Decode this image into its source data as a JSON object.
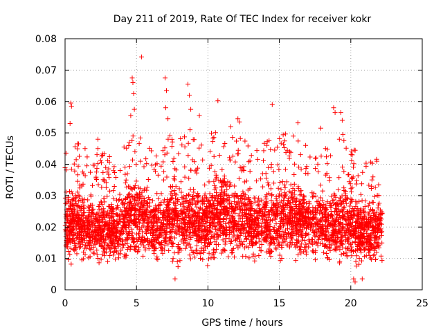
{
  "chart_data": {
    "type": "scatter",
    "title": "Day 211 of 2019, Rate Of TEC Index for receiver kokr",
    "xlabel": "GPS time / hours",
    "ylabel": "ROTI / TECUs",
    "xlim": [
      0,
      25
    ],
    "ylim": [
      0,
      0.08
    ],
    "grid": true,
    "x_ticks": [
      0,
      5,
      10,
      15,
      20,
      25
    ],
    "x_tick_labels": [
      "0",
      "5",
      "10",
      "15",
      "20",
      "25"
    ],
    "y_ticks": [
      0,
      0.01,
      0.02,
      0.03,
      0.04,
      0.05,
      0.06,
      0.07,
      0.08
    ],
    "y_tick_labels": [
      "0",
      "0.01",
      "0.02",
      "0.03",
      "0.04",
      "0.05",
      "0.06",
      "0.07",
      "0.08"
    ],
    "marker": "plus",
    "marker_color": "#ff0000",
    "data_coverage_hours": [
      0,
      22.2
    ],
    "band_envelope": {
      "x": [
        0,
        0.5,
        1,
        1.5,
        2,
        2.5,
        3,
        3.5,
        4,
        4.5,
        5,
        5.5,
        6,
        6.5,
        7,
        7.5,
        8,
        8.5,
        9,
        9.5,
        10,
        10.5,
        11,
        11.5,
        12,
        12.5,
        13,
        13.5,
        14,
        14.5,
        15,
        15.5,
        16,
        16.5,
        17,
        17.5,
        18,
        18.5,
        19,
        19.5,
        20,
        20.5,
        21,
        21.5,
        22.2
      ],
      "lower": [
        0.006,
        0.006,
        0.006,
        0.006,
        0.006,
        0.006,
        0.006,
        0.007,
        0.007,
        0.007,
        0.007,
        0.007,
        0.007,
        0.006,
        0.006,
        0.006,
        0.006,
        0.006,
        0.006,
        0.006,
        0.006,
        0.006,
        0.007,
        0.007,
        0.007,
        0.007,
        0.007,
        0.007,
        0.007,
        0.007,
        0.007,
        0.007,
        0.007,
        0.007,
        0.007,
        0.007,
        0.007,
        0.007,
        0.006,
        0.006,
        0.005,
        0.005,
        0.006,
        0.006,
        0.006
      ],
      "upper": [
        0.033,
        0.034,
        0.035,
        0.032,
        0.033,
        0.032,
        0.031,
        0.03,
        0.033,
        0.036,
        0.038,
        0.036,
        0.033,
        0.032,
        0.036,
        0.038,
        0.038,
        0.037,
        0.036,
        0.035,
        0.037,
        0.039,
        0.04,
        0.036,
        0.038,
        0.037,
        0.035,
        0.034,
        0.035,
        0.036,
        0.037,
        0.038,
        0.037,
        0.036,
        0.035,
        0.034,
        0.034,
        0.033,
        0.035,
        0.037,
        0.036,
        0.031,
        0.03,
        0.031,
        0.032
      ]
    },
    "notable_points": [
      {
        "x": 0.4,
        "y": 0.0595
      },
      {
        "x": 0.45,
        "y": 0.0585
      },
      {
        "x": 0.35,
        "y": 0.053
      },
      {
        "x": 1.4,
        "y": 0.045
      },
      {
        "x": 2.3,
        "y": 0.048
      },
      {
        "x": 2.3,
        "y": 0.045
      },
      {
        "x": 4.6,
        "y": 0.0555
      },
      {
        "x": 4.7,
        "y": 0.0675
      },
      {
        "x": 4.75,
        "y": 0.066
      },
      {
        "x": 4.8,
        "y": 0.0625
      },
      {
        "x": 4.85,
        "y": 0.0575
      },
      {
        "x": 5.35,
        "y": 0.0742
      },
      {
        "x": 7.0,
        "y": 0.0675
      },
      {
        "x": 7.1,
        "y": 0.0635
      },
      {
        "x": 7.05,
        "y": 0.058
      },
      {
        "x": 7.2,
        "y": 0.0545
      },
      {
        "x": 8.6,
        "y": 0.0655
      },
      {
        "x": 8.7,
        "y": 0.062
      },
      {
        "x": 8.8,
        "y": 0.0575
      },
      {
        "x": 8.75,
        "y": 0.051
      },
      {
        "x": 9.4,
        "y": 0.0555
      },
      {
        "x": 10.7,
        "y": 0.0602
      },
      {
        "x": 11.6,
        "y": 0.052
      },
      {
        "x": 12.1,
        "y": 0.0545
      },
      {
        "x": 12.2,
        "y": 0.0535
      },
      {
        "x": 14.5,
        "y": 0.059
      },
      {
        "x": 16.3,
        "y": 0.0532
      },
      {
        "x": 17.9,
        "y": 0.0515
      },
      {
        "x": 18.8,
        "y": 0.058
      },
      {
        "x": 18.9,
        "y": 0.0565
      },
      {
        "x": 19.3,
        "y": 0.0565
      },
      {
        "x": 19.4,
        "y": 0.054
      },
      {
        "x": 19.45,
        "y": 0.0495
      },
      {
        "x": 19.2,
        "y": 0.048
      },
      {
        "x": 20.1,
        "y": 0.043
      },
      {
        "x": 20.2,
        "y": 0.0035
      },
      {
        "x": 20.3,
        "y": 0.0025
      },
      {
        "x": 20.8,
        "y": 0.0035
      },
      {
        "x": 7.7,
        "y": 0.0035
      }
    ]
  }
}
